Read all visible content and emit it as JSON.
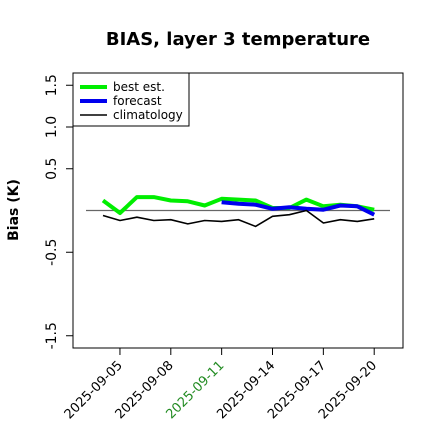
{
  "chart_data": {
    "type": "line",
    "title": "BIAS, layer 3 temperature",
    "ylabel": "Bias (K)",
    "xlabel": "",
    "ylim": [
      -1.6,
      1.6
    ],
    "yticks": [
      "-1.5",
      "-0.5",
      "0.5",
      "1.0",
      "1.5"
    ],
    "ytick_values": [
      -1.5,
      -0.5,
      0.5,
      1.0,
      1.5
    ],
    "x_start": "2025-09-04",
    "xtick_labels": [
      "2025-09-05",
      "2025-09-08",
      "2025-09-11",
      "2025-09-14",
      "2025-09-17",
      "2025-09-20"
    ],
    "highlighted_xtick": "2025-09-11",
    "highlight_color": "#228b22",
    "zero_line": 0,
    "legend_position": "top-left",
    "series": [
      {
        "name": "best est.",
        "color": "#00ee00",
        "x": [
          "2025-09-04",
          "2025-09-05",
          "2025-09-06",
          "2025-09-07",
          "2025-09-08",
          "2025-09-09",
          "2025-09-10",
          "2025-09-11",
          "2025-09-12",
          "2025-09-13",
          "2025-09-14",
          "2025-09-15",
          "2025-09-16",
          "2025-09-17",
          "2025-09-18",
          "2025-09-19",
          "2025-09-20"
        ],
        "values": [
          0.12,
          -0.03,
          0.16,
          0.16,
          0.12,
          0.11,
          0.06,
          0.14,
          0.13,
          0.12,
          0.03,
          0.03,
          0.13,
          0.05,
          0.07,
          0.05,
          0.01
        ]
      },
      {
        "name": "forecast",
        "color": "#0000ee",
        "x": [
          "2025-09-11",
          "2025-09-12",
          "2025-09-13",
          "2025-09-14",
          "2025-09-15",
          "2025-09-16",
          "2025-09-17",
          "2025-09-18",
          "2025-09-19",
          "2025-09-20"
        ],
        "values": [
          0.1,
          0.08,
          0.07,
          0.02,
          0.04,
          0.02,
          0.01,
          0.06,
          0.05,
          -0.05
        ]
      },
      {
        "name": "climatology",
        "color": "#000000",
        "x": [
          "2025-09-04",
          "2025-09-05",
          "2025-09-06",
          "2025-09-07",
          "2025-09-08",
          "2025-09-09",
          "2025-09-10",
          "2025-09-11",
          "2025-09-12",
          "2025-09-13",
          "2025-09-14",
          "2025-09-15",
          "2025-09-16",
          "2025-09-17",
          "2025-09-18",
          "2025-09-19",
          "2025-09-20"
        ],
        "values": [
          -0.06,
          -0.12,
          -0.08,
          -0.12,
          -0.11,
          -0.16,
          -0.12,
          -0.13,
          -0.11,
          -0.19,
          -0.07,
          -0.05,
          0.0,
          -0.15,
          -0.11,
          -0.13,
          -0.1
        ]
      }
    ]
  }
}
